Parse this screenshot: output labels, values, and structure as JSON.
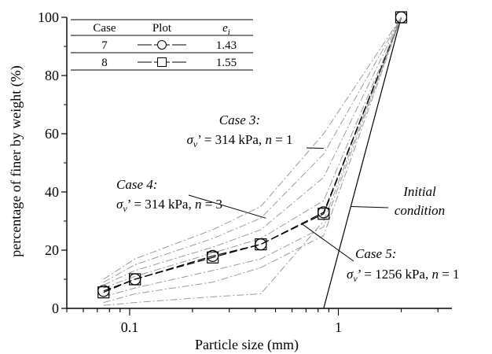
{
  "chart_data": {
    "type": "line",
    "xlabel": "Particle size (mm)",
    "ylabel": "percentage of finer by weight (%)",
    "xscale": "log",
    "xlim": [
      0.05,
      3.5
    ],
    "ylim": [
      0,
      100
    ],
    "x_ticks": [
      0.1,
      1
    ],
    "x_tick_labels": [
      "0.1",
      "1"
    ],
    "y_ticks": [
      0,
      20,
      40,
      60,
      80,
      100
    ],
    "y_tick_labels": [
      "0",
      "20",
      "40",
      "60",
      "80",
      "100"
    ],
    "grid": false,
    "legend": {
      "placement": "top-left",
      "headers": [
        "Case",
        "Plot",
        "e",
        "i"
      ],
      "rows": [
        {
          "case": "7",
          "marker": "circle",
          "e": "1.43"
        },
        {
          "case": "8",
          "marker": "square",
          "e": "1.55"
        }
      ]
    },
    "series": [
      {
        "marker": "circle",
        "style": "dashed",
        "color": "#000000",
        "x": [
          0.075,
          0.106,
          0.25,
          0.425,
          0.85,
          2.0
        ],
        "y": [
          6,
          10,
          18,
          22,
          33,
          100
        ]
      },
      {
        "marker": "square",
        "style": "dashed",
        "color": "#000000",
        "x": [
          0.075,
          0.106,
          0.25,
          0.425,
          0.85,
          2.0
        ],
        "y": [
          5.5,
          10,
          17.5,
          22,
          32.5,
          100
        ]
      },
      {
        "style": "solid",
        "color": "#000000",
        "x": [
          0.85,
          2.0
        ],
        "y": [
          0,
          100
        ]
      },
      {
        "style": "dashdot",
        "color": "#999999",
        "x": [
          0.075,
          0.106,
          0.25,
          0.425,
          0.85,
          2.0
        ],
        "y": [
          1,
          2,
          4,
          5,
          30,
          100
        ]
      },
      {
        "style": "dashdot",
        "color": "#999999",
        "x": [
          0.075,
          0.106,
          0.25,
          0.425,
          0.85,
          2.0
        ],
        "y": [
          2,
          5,
          9,
          14,
          25,
          100
        ]
      },
      {
        "style": "dashdot",
        "color": "#999999",
        "x": [
          0.075,
          0.106,
          0.25,
          0.425,
          0.85,
          2.0
        ],
        "y": [
          4,
          7,
          13,
          17,
          28,
          100
        ]
      },
      {
        "style": "dashdot",
        "color": "#999999",
        "x": [
          0.075,
          0.106,
          0.25,
          0.425,
          0.85,
          2.0
        ],
        "y": [
          7,
          11,
          19,
          24,
          37,
          100
        ]
      },
      {
        "style": "dashdot",
        "color": "#999999",
        "x": [
          0.075,
          0.106,
          0.25,
          0.425,
          0.85,
          2.0
        ],
        "y": [
          8,
          13,
          21,
          27,
          45,
          100
        ]
      },
      {
        "style": "dashdot",
        "color": "#999999",
        "x": [
          0.075,
          0.106,
          0.25,
          0.425,
          0.85,
          2.0
        ],
        "y": [
          9,
          15,
          24,
          31,
          53,
          100
        ]
      },
      {
        "style": "dashdot",
        "color": "#999999",
        "x": [
          0.075,
          0.106,
          0.25,
          0.425,
          0.85,
          2.0
        ],
        "y": [
          10,
          17,
          27,
          35,
          60,
          100
        ]
      }
    ],
    "annotations": [
      {
        "id": "case3",
        "title": "Case 3:",
        "symbol": "σ",
        "sub": "v",
        "rest": "’ = 314 kPa, ",
        "nvar": "n",
        "nval": " = 1",
        "target": [
          0.85,
          55
        ]
      },
      {
        "id": "case4",
        "title": "Case 4:",
        "symbol": "σ",
        "sub": "v",
        "rest": "’ = 314 kPa, ",
        "nvar": "n",
        "nval": " = 3",
        "target": [
          0.45,
          31
        ]
      },
      {
        "id": "case5",
        "title": "Case 5:",
        "symbol": "σ",
        "sub": "v",
        "rest": "’ = 1256 kPa, ",
        "nvar": "n",
        "nval": " = 1",
        "target": [
          0.67,
          29
        ]
      },
      {
        "id": "initial",
        "line1": "Initial",
        "line2": "condition",
        "target": [
          1.15,
          35
        ]
      }
    ]
  }
}
